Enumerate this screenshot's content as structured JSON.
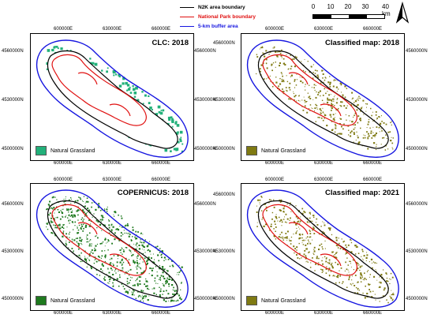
{
  "legend": {
    "items": [
      {
        "label": "N2K area boundary",
        "color": "#000000"
      },
      {
        "label": "National Park boundary",
        "color": "#e01010"
      },
      {
        "label": "5-km buffer area",
        "color": "#1515e0"
      }
    ]
  },
  "scalebar": {
    "labels": [
      "0",
      "10",
      "20",
      "30",
      "40 km"
    ]
  },
  "north_arrow": {
    "icon": "north-arrow-icon"
  },
  "axes": {
    "x_ticks": [
      "600000E",
      "630000E",
      "660000E"
    ],
    "y_ticks": [
      "4560000N",
      "4530000N",
      "4500000N"
    ]
  },
  "panels": [
    {
      "title": "CLC: 2018",
      "legend_label": "Natural Grassland",
      "color": "#22b07a"
    },
    {
      "title": "Classified map: 2018",
      "legend_label": "Natural Grassland",
      "color": "#7f7a12"
    },
    {
      "title": "COPERNICUS: 2018",
      "legend_label": "Natural Grassland",
      "color": "#1f7a1f"
    },
    {
      "title": "Classified map: 2021",
      "legend_label": "Natural Grassland",
      "color": "#7f7a12"
    }
  ]
}
